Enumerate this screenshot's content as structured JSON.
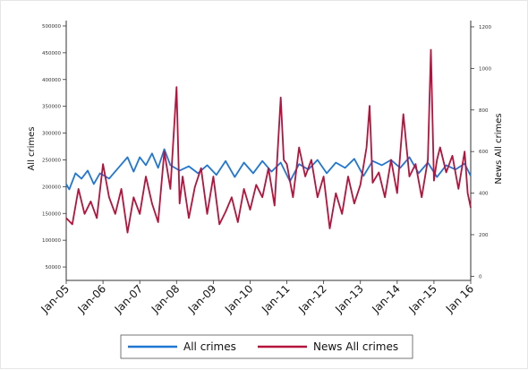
{
  "chart_data": {
    "type": "line",
    "title": "",
    "xlabel": "",
    "x_ticks": [
      "Jan-05",
      "Jan-06",
      "Jan-07",
      "Jan-08",
      "Jan-09",
      "Jan-10",
      "Jan-11",
      "Jan-12",
      "Jan-13",
      "Jan-14",
      "Jan-15",
      "Jan 16"
    ],
    "y_left": {
      "label": "All crimes",
      "range": [
        25000,
        510000
      ],
      "ticks": [
        50000,
        100000,
        150000,
        200000,
        250000,
        300000,
        350000,
        400000,
        450000,
        500000
      ],
      "tick_labels": [
        "50000",
        "100000",
        "150000",
        "200000",
        "250000",
        "300000",
        "350000",
        "400000",
        "450000",
        "500000"
      ]
    },
    "y_right": {
      "label": "News All crimes",
      "range": [
        -20,
        1230
      ],
      "ticks": [
        0,
        200,
        400,
        600,
        800,
        1000,
        1200
      ],
      "tick_labels": [
        "0",
        "200",
        "400",
        "600",
        "800",
        "1000",
        "1200"
      ]
    },
    "x_range": [
      "2005-01",
      "2016-01"
    ],
    "grid": false,
    "legend_position": "bottom",
    "colors": {
      "all_crimes": "#1f77d4",
      "news_all_crimes": "#b5123c"
    },
    "series": [
      {
        "name": "All crimes",
        "axis": "left",
        "dates": [
          "2005-01",
          "2005-02",
          "2005-04",
          "2005-06",
          "2005-08",
          "2005-10",
          "2005-12",
          "2006-03",
          "2006-06",
          "2006-09",
          "2006-11",
          "2007-01",
          "2007-03",
          "2007-05",
          "2007-07",
          "2007-09",
          "2007-11",
          "2008-02",
          "2008-05",
          "2008-08",
          "2008-11",
          "2009-02",
          "2009-05",
          "2009-08",
          "2009-11",
          "2010-02",
          "2010-05",
          "2010-08",
          "2010-11",
          "2011-02",
          "2011-05",
          "2011-08",
          "2011-11",
          "2012-02",
          "2012-05",
          "2012-08",
          "2012-11",
          "2013-02",
          "2013-05",
          "2013-08",
          "2013-11",
          "2014-02",
          "2014-05",
          "2014-08",
          "2014-11",
          "2015-02",
          "2015-05",
          "2015-08",
          "2015-11",
          "2016-01"
        ],
        "values": [
          205000,
          195000,
          225000,
          215000,
          230000,
          205000,
          225000,
          215000,
          235000,
          255000,
          228000,
          255000,
          240000,
          262000,
          235000,
          270000,
          240000,
          230000,
          238000,
          225000,
          240000,
          222000,
          248000,
          218000,
          245000,
          225000,
          248000,
          228000,
          245000,
          210000,
          242000,
          232000,
          250000,
          225000,
          245000,
          235000,
          252000,
          220000,
          248000,
          240000,
          250000,
          235000,
          255000,
          225000,
          245000,
          218000,
          240000,
          232000,
          243000,
          220000
        ]
      },
      {
        "name": "News All crimes",
        "axis": "right",
        "dates": [
          "2005-01",
          "2005-03",
          "2005-05",
          "2005-07",
          "2005-09",
          "2005-11",
          "2006-01",
          "2006-03",
          "2006-05",
          "2006-07",
          "2006-09",
          "2006-11",
          "2007-01",
          "2007-03",
          "2007-05",
          "2007-07",
          "2007-09",
          "2007-11",
          "2008-01",
          "2008-02",
          "2008-03",
          "2008-05",
          "2008-07",
          "2008-09",
          "2008-11",
          "2009-01",
          "2009-03",
          "2009-05",
          "2009-07",
          "2009-09",
          "2009-11",
          "2010-01",
          "2010-03",
          "2010-05",
          "2010-07",
          "2010-09",
          "2010-11",
          "2010-12",
          "2011-01",
          "2011-03",
          "2011-05",
          "2011-07",
          "2011-09",
          "2011-11",
          "2012-01",
          "2012-03",
          "2012-05",
          "2012-07",
          "2012-09",
          "2012-11",
          "2013-01",
          "2013-03",
          "2013-04",
          "2013-05",
          "2013-07",
          "2013-09",
          "2013-11",
          "2014-01",
          "2014-03",
          "2014-05",
          "2014-07",
          "2014-09",
          "2014-11",
          "2014-12",
          "2015-01",
          "2015-02",
          "2015-03",
          "2015-05",
          "2015-07",
          "2015-09",
          "2015-11",
          "2015-12",
          "2016-01"
        ],
        "values": [
          280,
          250,
          420,
          300,
          360,
          280,
          540,
          380,
          300,
          420,
          210,
          380,
          300,
          480,
          350,
          260,
          600,
          420,
          910,
          350,
          480,
          280,
          430,
          520,
          300,
          480,
          250,
          310,
          380,
          260,
          420,
          320,
          440,
          380,
          520,
          340,
          860,
          560,
          540,
          380,
          620,
          480,
          560,
          380,
          480,
          230,
          400,
          300,
          480,
          350,
          440,
          620,
          820,
          450,
          500,
          380,
          560,
          400,
          780,
          480,
          540,
          380,
          560,
          1090,
          460,
          560,
          620,
          500,
          580,
          420,
          600,
          400,
          330
        ]
      }
    ]
  },
  "legend": {
    "items": [
      {
        "label": "All crimes",
        "color": "#1f77d4"
      },
      {
        "label": "News All crimes",
        "color": "#b5123c"
      }
    ]
  }
}
